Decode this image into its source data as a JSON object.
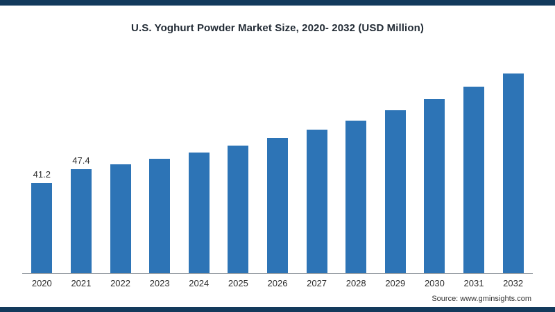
{
  "frame": {
    "accent_color": "#133a5c"
  },
  "source": "Source: www.gminsights.com",
  "chart_data": {
    "type": "bar",
    "title": "U.S. Yoghurt Powder Market Size, 2020- 2032 (USD Million)",
    "xlabel": "",
    "ylabel": "",
    "categories": [
      "2020",
      "2021",
      "2022",
      "2023",
      "2024",
      "2025",
      "2026",
      "2027",
      "2028",
      "2029",
      "2030",
      "2031",
      "2032"
    ],
    "values": [
      41.2,
      47.4,
      49.8,
      52.4,
      55.2,
      58.3,
      61.7,
      65.4,
      69.7,
      74.3,
      79.6,
      85.2,
      91.3
    ],
    "data_labels": [
      "41.2",
      "47.4",
      "",
      "",
      "",
      "",
      "",
      "",
      "",
      "",
      "",
      "",
      ""
    ],
    "bar_color": "#2d74b6",
    "ylim": [
      0,
      95
    ],
    "grid": false,
    "legend": "none"
  }
}
